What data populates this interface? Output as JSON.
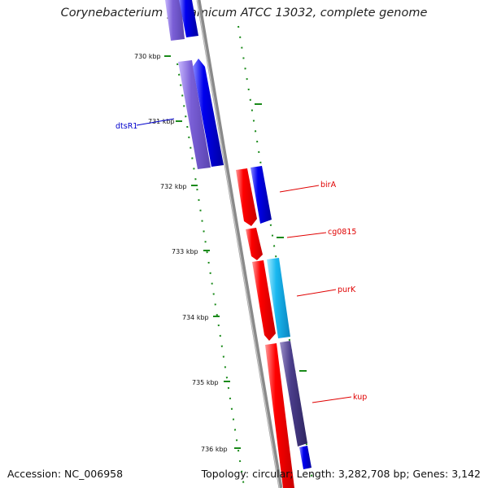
{
  "title": "Corynebacterium glutamicum ATCC 13032, complete genome",
  "accession": "Accession: NC_006958",
  "summary": "Topology: circular; Length: 3,282,708 bp; Genes: 3,142",
  "ticks": [
    "730 kbp",
    "731 kbp",
    "732 kbp",
    "733 kbp",
    "734 kbp",
    "735 kbp",
    "736 kbp"
  ],
  "gene_labels": {
    "dtsR1": "dtsR1",
    "birA": "birA",
    "cg0815": "cg0815",
    "purK": "purK",
    "kup": "kup"
  },
  "colors": {
    "backbone": "#8a8a8a",
    "tick_dots": "#1a8a1a",
    "forward_red": "#ff0000",
    "reverse_blue": "#0000ee",
    "purple": "#7a5fd6",
    "cyan": "#19b8f0",
    "navy_purple": "#4a3d8a",
    "label_red": "#e00000",
    "label_blue": "#0000cc"
  }
}
